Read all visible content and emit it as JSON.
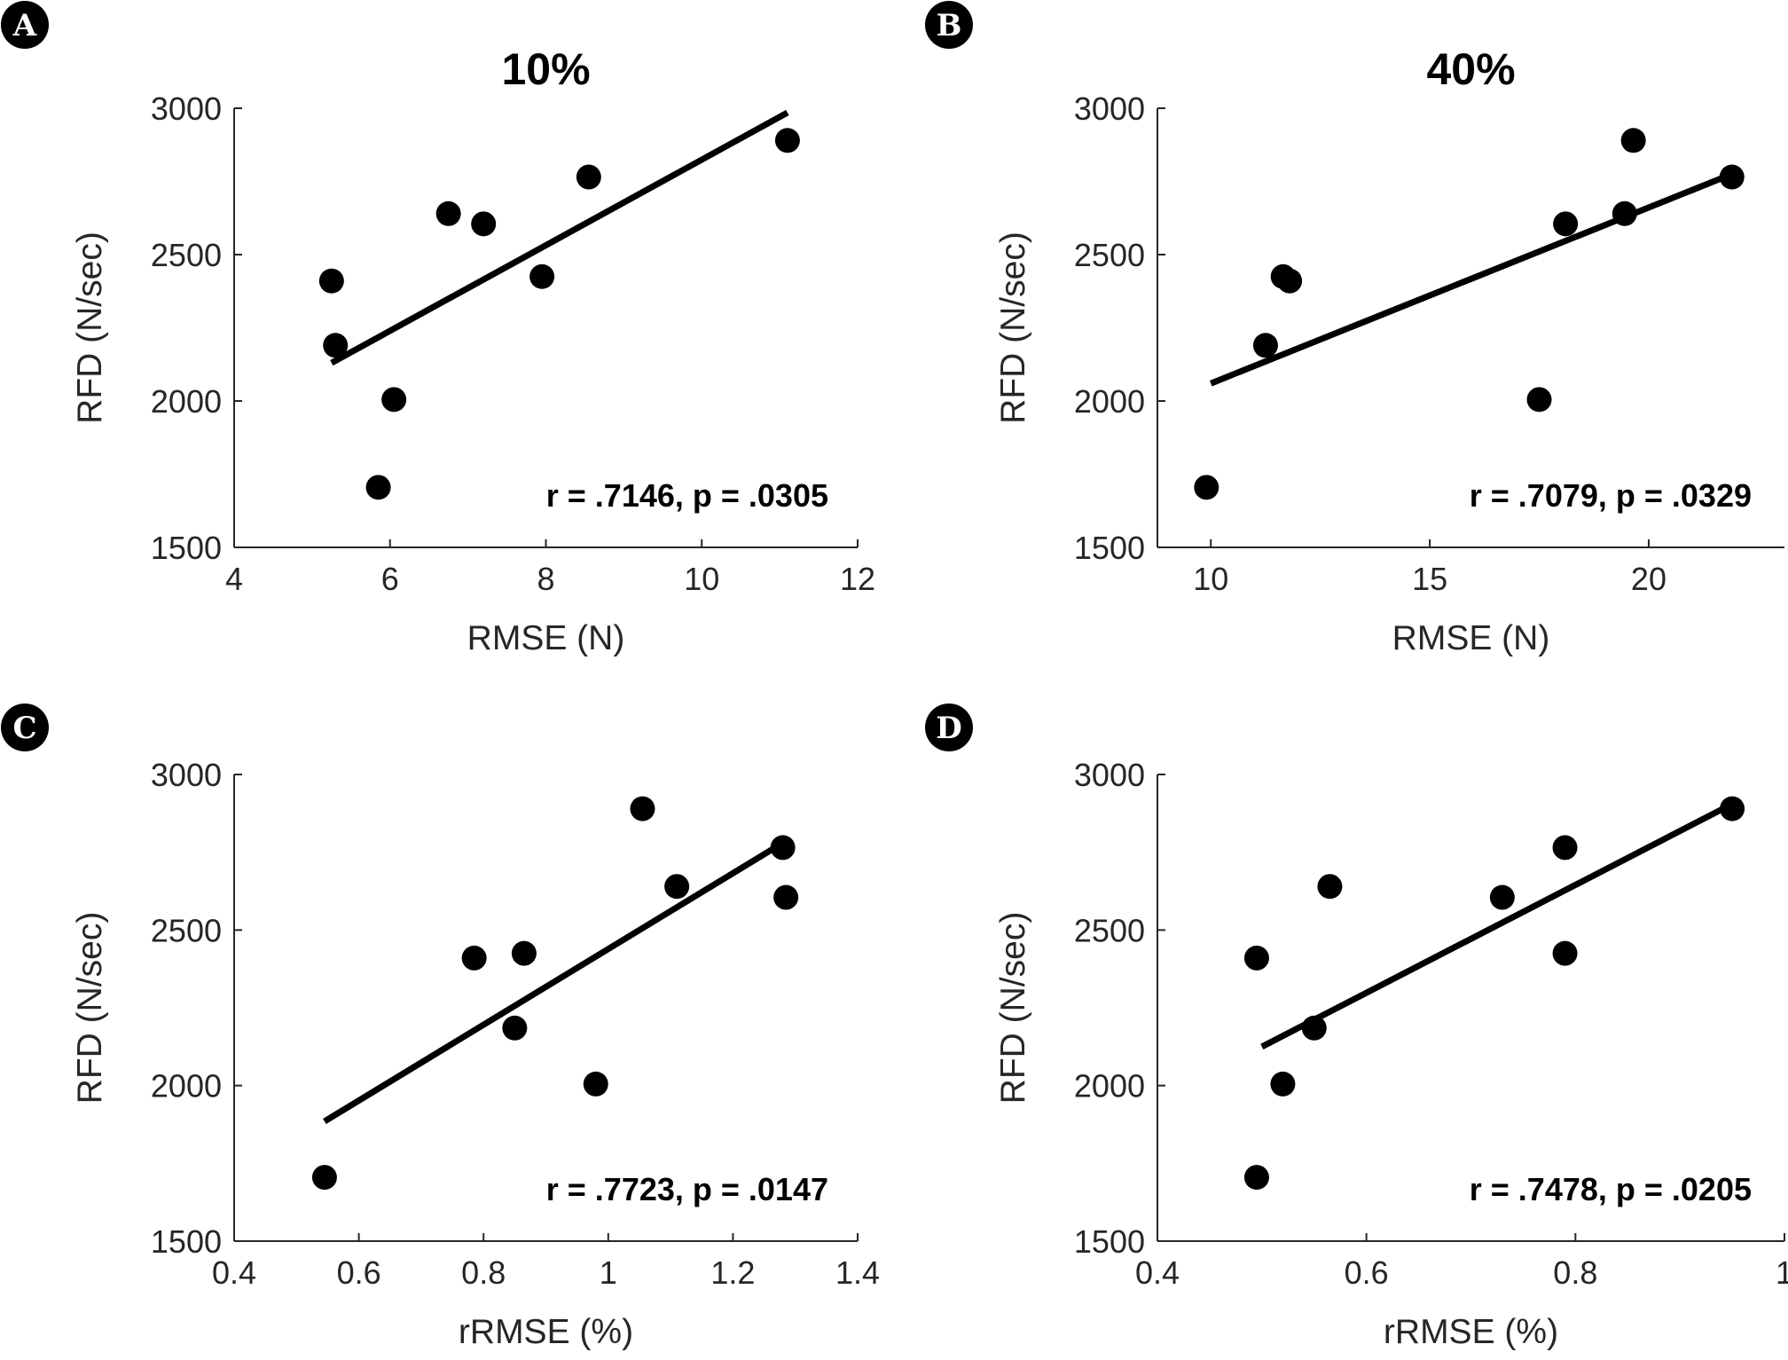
{
  "chart_data": [
    {
      "type": "scatter",
      "panel_label": "A",
      "title": "10%",
      "xlabel": "RMSE (N)",
      "ylabel": "RFD (N/sec)",
      "xlim": [
        4,
        12
      ],
      "ylim": [
        1500,
        3000
      ],
      "xticks": [
        4,
        6,
        8,
        10,
        12
      ],
      "yticks": [
        1500,
        2000,
        2500,
        3000
      ],
      "annotation": "r = .7146, p = .0305",
      "points": [
        [
          5.25,
          2410
        ],
        [
          5.3,
          2190
        ],
        [
          5.85,
          1705
        ],
        [
          6.05,
          2005
        ],
        [
          6.75,
          2640
        ],
        [
          7.2,
          2605
        ],
        [
          7.95,
          2425
        ],
        [
          8.55,
          2765
        ],
        [
          11.1,
          2890
        ]
      ],
      "fit": [
        [
          5.25,
          2130
        ],
        [
          11.1,
          2985
        ]
      ]
    },
    {
      "type": "scatter",
      "panel_label": "B",
      "title": "40%",
      "xlabel": "RMSE (N)",
      "ylabel": "RFD (N/sec)",
      "xlim": [
        8.78,
        23.1
      ],
      "ylim": [
        1500,
        3000
      ],
      "xticks": [
        10,
        15,
        20
      ],
      "yticks": [
        1500,
        2000,
        2500,
        3000
      ],
      "annotation": "r = .7079, p = .0329",
      "points": [
        [
          9.9,
          1705
        ],
        [
          11.25,
          2190
        ],
        [
          11.65,
          2425
        ],
        [
          11.8,
          2410
        ],
        [
          17.5,
          2005
        ],
        [
          18.1,
          2605
        ],
        [
          19.45,
          2640
        ],
        [
          19.65,
          2890
        ],
        [
          21.9,
          2765
        ]
      ],
      "fit": [
        [
          10,
          2060
        ],
        [
          21.9,
          2775
        ]
      ]
    },
    {
      "type": "scatter",
      "panel_label": "C",
      "title": "",
      "xlabel": "rRMSE (%)",
      "ylabel": "RFD (N/sec)",
      "xlim": [
        0.4,
        1.4
      ],
      "ylim": [
        1500,
        3000
      ],
      "xticks": [
        0.4,
        0.6,
        0.8,
        1,
        1.2,
        1.4
      ],
      "yticks": [
        1500,
        2000,
        2500,
        3000
      ],
      "annotation": "r = .7723, p = .0147",
      "points": [
        [
          0.545,
          1705
        ],
        [
          0.785,
          2410
        ],
        [
          0.85,
          2185
        ],
        [
          0.865,
          2425
        ],
        [
          0.98,
          2005
        ],
        [
          1.055,
          2890
        ],
        [
          1.11,
          2640
        ],
        [
          1.28,
          2765
        ],
        [
          1.285,
          2605
        ]
      ],
      "fit": [
        [
          0.545,
          1885
        ],
        [
          1.28,
          2780
        ]
      ]
    },
    {
      "type": "scatter",
      "panel_label": "D",
      "title": "",
      "xlabel": "rRMSE (%)",
      "ylabel": "RFD (N/sec)",
      "xlim": [
        0.4,
        1.0
      ],
      "ylim": [
        1500,
        3000
      ],
      "xticks": [
        0.4,
        0.6,
        0.8,
        1
      ],
      "yticks": [
        1500,
        2000,
        2500,
        3000
      ],
      "annotation": "r = .7478, p = .0205",
      "points": [
        [
          0.495,
          1705
        ],
        [
          0.495,
          2410
        ],
        [
          0.52,
          2005
        ],
        [
          0.55,
          2185
        ],
        [
          0.565,
          2640
        ],
        [
          0.73,
          2605
        ],
        [
          0.79,
          2765
        ],
        [
          0.79,
          2425
        ],
        [
          0.95,
          2890
        ]
      ],
      "fit": [
        [
          0.5,
          2125
        ],
        [
          0.95,
          2905
        ]
      ]
    }
  ]
}
